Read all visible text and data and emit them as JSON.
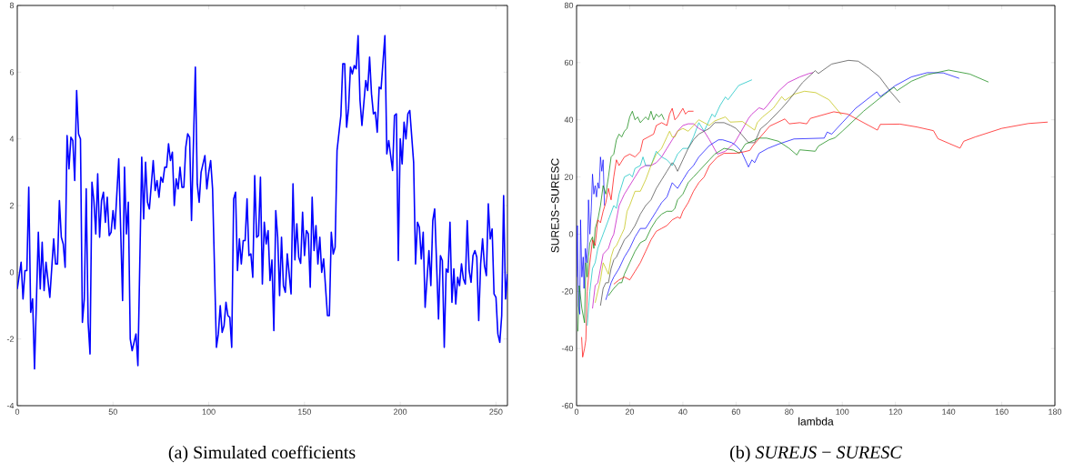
{
  "chart_data": [
    {
      "type": "line",
      "title": "(a) Simulated coefficients",
      "color": "#0000ff",
      "xlim": [
        0,
        256
      ],
      "ylim": [
        -4,
        8
      ],
      "xticks": [
        0,
        50,
        100,
        150,
        200,
        250
      ],
      "yticks": [
        -4,
        -2,
        0,
        2,
        4,
        6,
        8
      ],
      "x": [
        0,
        2,
        3,
        4,
        5,
        6,
        7,
        8,
        9,
        11,
        12,
        13,
        14,
        15,
        17,
        19,
        20,
        21,
        22,
        23,
        24,
        25,
        26,
        27,
        28,
        29,
        30,
        31,
        32,
        33,
        34,
        35,
        36,
        37,
        38,
        39,
        40,
        41,
        42,
        43,
        44,
        45,
        46,
        47,
        48,
        49,
        50,
        51,
        53,
        55,
        56,
        57,
        58,
        59,
        60,
        62,
        63,
        65,
        66,
        67,
        68,
        69,
        71,
        72,
        73,
        74,
        75,
        76,
        77,
        78,
        79,
        80,
        81,
        82,
        83,
        84,
        85,
        86,
        87,
        88,
        89,
        90,
        91,
        93,
        94,
        95,
        96,
        98,
        99,
        100,
        101,
        102,
        104,
        105,
        106,
        107,
        108,
        109,
        110,
        111,
        112,
        113,
        114,
        115,
        116,
        117,
        118,
        119,
        120,
        121,
        122,
        123,
        124,
        125,
        126,
        127,
        128,
        129,
        130,
        131,
        132,
        133,
        134,
        135,
        136,
        137,
        138,
        139,
        140,
        141,
        143,
        144,
        145,
        146,
        147,
        148,
        149,
        150,
        151,
        152,
        153,
        154,
        155,
        156,
        157,
        158,
        159,
        160,
        162,
        163,
        164,
        165,
        166,
        167,
        169,
        170,
        171,
        172,
        173,
        174,
        175,
        176,
        177,
        178,
        179,
        180,
        182,
        183,
        184,
        185,
        186,
        187,
        188,
        189,
        190,
        192,
        193,
        194,
        196,
        197,
        198,
        199,
        200,
        201,
        202,
        203,
        204,
        205,
        207,
        208,
        209,
        210,
        211,
        212,
        213,
        215,
        216,
        217,
        218,
        220,
        221,
        222,
        223,
        224,
        225,
        226,
        227,
        228,
        229,
        230,
        231,
        232,
        233,
        234,
        235,
        236,
        237,
        238,
        239,
        240,
        241,
        242,
        243,
        244,
        245,
        246,
        247,
        248,
        249,
        250,
        251,
        252,
        253,
        254,
        255,
        256
      ],
      "values": [
        -0.5,
        0.3,
        -0.8,
        0.05,
        0.05,
        2.55,
        -1.2,
        -0.8,
        -2.9,
        1.2,
        -0.5,
        0.9,
        -0.55,
        0.3,
        -0.75,
        1.0,
        0.25,
        0.25,
        2.15,
        1.05,
        0.85,
        0.15,
        4.1,
        3.1,
        4.05,
        3.95,
        2.75,
        5.45,
        4.15,
        4.0,
        -1.5,
        -0.8,
        2.5,
        -1.5,
        -2.45,
        2.7,
        2.15,
        1.15,
        2.95,
        1.05,
        2.15,
        2.4,
        1.5,
        2.25,
        1.1,
        1.2,
        1.85,
        1.3,
        3.4,
        -0.85,
        3.15,
        1.15,
        2.1,
        -2.0,
        -2.35,
        -1.85,
        -2.8,
        3.45,
        1.6,
        3.3,
        2.1,
        1.9,
        3.35,
        2.45,
        2.75,
        2.25,
        2.85,
        2.7,
        3.15,
        3.15,
        3.85,
        3.35,
        3.6,
        2.0,
        2.8,
        2.5,
        3.15,
        2.55,
        2.55,
        3.75,
        4.15,
        4.05,
        1.55,
        6.15,
        2.65,
        2.1,
        3.0,
        3.5,
        2.5,
        3.0,
        3.35,
        2.5,
        -2.25,
        -1.85,
        -1.0,
        -1.8,
        -1.6,
        -0.9,
        -1.3,
        -1.35,
        -2.25,
        2.2,
        2.4,
        0.05,
        1.0,
        0.25,
        0.95,
        0.95,
        2.2,
        0.5,
        0.55,
        -0.15,
        2.9,
        1.05,
        1.1,
        2.85,
        -0.35,
        1.5,
        0.85,
        1.25,
        -0.25,
        0.37,
        -1.75,
        1.85,
        1.05,
        -0.7,
        1.05,
        -0.4,
        -0.6,
        0.55,
        -0.65,
        2.65,
        0.37,
        1.45,
        0.45,
        0.27,
        1.8,
        0.5,
        1.25,
        1.15,
        -0.45,
        2.25,
        0.65,
        1.4,
        0.25,
        1.05,
        0.0,
        0.4,
        -1.3,
        -1.3,
        1.2,
        0.55,
        0.75,
        3.65,
        4.7,
        6.25,
        6.25,
        4.35,
        4.9,
        6.15,
        5.95,
        6.2,
        6.1,
        7.1,
        5.15,
        4.4,
        5.75,
        5.45,
        6.45,
        5.35,
        4.75,
        4.8,
        4.2,
        5.55,
        5.5,
        7.1,
        3.55,
        3.95,
        3.05,
        4.7,
        4.75,
        0.35,
        4.0,
        3.25,
        4.5,
        4.0,
        4.75,
        4.85,
        3.3,
        0.25,
        1.5,
        1.35,
        0.4,
        1.2,
        -1.05,
        0.65,
        -0.4,
        1.55,
        1.9,
        -1.4,
        0.5,
        0.35,
        -2.25,
        0.1,
        0.0,
        1.5,
        -0.9,
        0.1,
        -0.95,
        -0.15,
        -0.4,
        0.25,
        -0.2,
        -0.35,
        1.55,
        0.05,
        -0.3,
        0.5,
        0.65,
        0.45,
        -1.45,
        0.25,
        1.0,
        0.2,
        -0.1,
        2.05,
        1.0,
        1.3,
        -0.65,
        -0.75,
        -1.85,
        -2.1,
        -1.3,
        2.3,
        -0.8,
        -0.05
      ]
    },
    {
      "type": "line",
      "title": "(b) *SUREJS* − *SURESC*",
      "xlabel": "lambda",
      "ylabel": "SUREJS−SURESC",
      "xlim": [
        0,
        180
      ],
      "ylim": [
        -60,
        80
      ],
      "xticks": [
        0,
        20,
        40,
        60,
        80,
        100,
        120,
        140,
        160,
        180
      ],
      "yticks": [
        -60,
        -40,
        -20,
        0,
        20,
        40,
        60,
        80
      ],
      "series": [
        {
          "color": "#0000ff",
          "x": [
            0,
            0.3,
            0.7,
            1.2,
            1.5,
            2,
            2.5,
            2.8,
            3.3,
            3.8,
            4.2,
            4.5,
            5,
            5.5,
            6,
            6.5,
            7,
            7.5,
            8,
            8.5,
            9,
            9.5,
            10,
            10.5
          ],
          "values": [
            -15,
            3,
            -25,
            -28,
            5,
            -15,
            -8,
            -19,
            -5,
            -10,
            -3,
            12,
            0,
            8,
            21,
            14,
            17,
            13,
            18,
            16,
            27,
            22,
            26,
            10
          ]
        },
        {
          "color": "#008000",
          "x": [
            0.5,
            1,
            2,
            3,
            3.5,
            4,
            4.5,
            5,
            6,
            6.5,
            7,
            8,
            9,
            10,
            11,
            12,
            13,
            14,
            15,
            16,
            17,
            18,
            19,
            20,
            21,
            22,
            23,
            24,
            25,
            26,
            27,
            28,
            29,
            30,
            31,
            32,
            33
          ],
          "values": [
            -34,
            -18,
            -26,
            -31,
            -10,
            -15,
            -8,
            -3,
            -1,
            -5,
            2,
            5,
            10,
            17,
            14,
            20,
            27,
            28,
            33,
            35,
            34,
            36,
            37,
            41,
            43,
            40,
            41,
            39,
            40,
            41,
            40,
            43,
            40,
            42,
            41,
            42,
            40
          ]
        },
        {
          "color": "#ff0000",
          "x": [
            1.9,
            2.3,
            3,
            3.5,
            4,
            5,
            6,
            7,
            8,
            9,
            10,
            11,
            12,
            13,
            14,
            15,
            16,
            18,
            20,
            22,
            24,
            25,
            27,
            29,
            30,
            32,
            34,
            35,
            36,
            37,
            38,
            40,
            41,
            42,
            44
          ],
          "values": [
            -36,
            -43,
            -40,
            -37,
            -20,
            -10,
            -2,
            -4,
            5,
            4,
            8,
            11,
            16,
            12,
            20,
            26,
            24,
            27,
            28,
            27,
            29,
            33,
            34,
            35,
            38,
            39,
            38,
            42,
            44,
            40,
            41,
            44,
            42,
            43,
            43
          ]
        },
        {
          "color": "#00bfbf",
          "x": [
            4,
            5,
            6,
            7,
            8,
            10,
            12,
            14,
            15,
            16,
            18,
            20,
            21,
            22,
            24,
            25,
            26,
            28,
            30,
            32,
            34,
            36,
            38,
            40,
            42,
            44,
            46,
            48,
            50,
            51,
            52,
            54,
            56,
            57,
            61,
            66
          ],
          "values": [
            -32,
            -20,
            -12,
            -10,
            -5,
            0,
            5,
            10,
            9,
            14,
            20,
            21,
            20,
            23,
            24,
            27,
            24,
            24,
            29,
            27,
            26,
            24,
            28,
            30,
            30,
            34,
            39,
            36,
            40,
            42,
            41,
            45,
            48,
            47,
            52,
            54
          ]
        },
        {
          "color": "#bf00bf",
          "x": [
            6,
            7,
            8,
            9,
            10,
            11,
            12,
            13,
            14,
            15,
            16,
            17,
            18,
            20,
            22,
            24,
            26,
            28,
            30,
            32,
            34,
            36,
            38,
            40,
            42,
            44,
            46,
            48,
            50,
            53,
            56,
            59.5,
            62,
            64.7,
            66,
            68.7,
            70.4,
            71.5,
            76,
            79.5,
            84,
            87.5,
            89
          ],
          "values": [
            -26,
            -18,
            -17,
            -12,
            -7,
            -6,
            -5,
            -2,
            0,
            5,
            10,
            12,
            14,
            17,
            20,
            23,
            24,
            24,
            25,
            27,
            30,
            33,
            36,
            38,
            38.6,
            38.6,
            37,
            36,
            33,
            28,
            29,
            32,
            36,
            40.5,
            42,
            44.2,
            43.6,
            44.7,
            50,
            53,
            55,
            56.2,
            56.5
          ]
        },
        {
          "color": "#bfbf00",
          "x": [
            7,
            8,
            9,
            10,
            11,
            12,
            13,
            14,
            15,
            16,
            17,
            18,
            19,
            20,
            22,
            24,
            26,
            28,
            30,
            32,
            34,
            35,
            36,
            37,
            38,
            40,
            42,
            44,
            46,
            48,
            50,
            52,
            56,
            57.8,
            62.4,
            67,
            68,
            70,
            74,
            77.2,
            78.4,
            82,
            85.8,
            90,
            95,
            99.7
          ],
          "values": [
            -24,
            -20,
            -16,
            -10,
            -12,
            -14,
            -8,
            -5,
            -4,
            -2,
            0,
            2,
            8,
            10,
            15,
            15,
            19,
            24,
            28,
            30,
            34,
            36,
            34,
            34,
            36,
            37,
            36,
            38,
            40,
            39,
            38,
            39.6,
            41,
            39.2,
            39.4,
            36.4,
            39,
            41,
            44,
            48.1,
            46.8,
            49,
            50,
            49.5,
            47,
            41.7
          ]
        },
        {
          "color": "#404040",
          "x": [
            9,
            10,
            11,
            12,
            13,
            14,
            15,
            16,
            18,
            20,
            22,
            24,
            26,
            28,
            30,
            32,
            34,
            36,
            37,
            38,
            40,
            42,
            44,
            46,
            48,
            50,
            52,
            55.5,
            58,
            60,
            62,
            64.7,
            67,
            69.2,
            72,
            77.2,
            80,
            85,
            89.8,
            91,
            96,
            102.3,
            106,
            110,
            114,
            118,
            121.7
          ],
          "values": [
            -25,
            -19,
            -17,
            -17,
            -12,
            -9,
            -8,
            -6,
            -2,
            0,
            3,
            7,
            10,
            12,
            16,
            19,
            22,
            25,
            24,
            22,
            26,
            30,
            33,
            35,
            36,
            37,
            39,
            39,
            38,
            37,
            35,
            32,
            32,
            36.8,
            39,
            44,
            47,
            53,
            57.2,
            56.2,
            59.5,
            60.8,
            60.5,
            58,
            55,
            50,
            46
          ]
        },
        {
          "color": "#0000ff",
          "x": [
            11,
            12,
            13,
            14,
            16,
            18,
            20,
            22,
            24,
            26,
            28,
            30,
            32,
            34,
            36,
            37,
            38,
            40,
            42,
            44,
            46,
            48,
            50,
            53.4,
            55,
            58.4,
            60,
            62,
            64.7,
            66,
            67,
            68.7,
            72,
            76,
            81.8,
            93.2,
            94.3,
            96,
            100,
            105,
            113,
            114.3,
            120,
            126,
            132,
            138,
            144
          ],
          "values": [
            -23,
            -20,
            -17,
            -15,
            -12,
            -8,
            -5,
            -1,
            2,
            2,
            5,
            8,
            11,
            13,
            18,
            17,
            16,
            19,
            22,
            24,
            27,
            29,
            31,
            33,
            33,
            32,
            31,
            29,
            23.5,
            26,
            25,
            28.3,
            30,
            31.5,
            33.3,
            33.6,
            35.7,
            35,
            39,
            44,
            49.8,
            48.1,
            52,
            55,
            56.5,
            56.4,
            54.5
          ]
        },
        {
          "color": "#008000",
          "x": [
            12,
            14,
            16,
            17,
            18,
            20,
            22,
            24,
            26,
            28,
            30,
            32,
            34,
            36,
            37,
            38,
            40,
            42,
            44,
            46,
            48,
            50,
            52,
            55.5,
            59,
            61.3,
            63.5,
            68.7,
            71.5,
            76,
            80,
            82.9,
            84,
            89.8,
            91,
            95,
            97.2,
            100,
            108,
            114,
            119.4,
            120.6,
            126,
            132,
            140,
            148,
            155
          ],
          "values": [
            -21.5,
            -19,
            -17,
            -17,
            -14,
            -10,
            -6,
            -3,
            -2,
            2,
            5,
            7,
            8,
            8,
            9,
            12,
            14,
            18,
            20,
            22,
            24,
            26,
            28,
            30,
            29.4,
            28.3,
            31.5,
            33.6,
            33.6,
            32.5,
            30,
            27.7,
            29.5,
            29,
            30.8,
            33,
            33.7,
            36,
            43,
            47.5,
            51.4,
            50.2,
            53.5,
            55.8,
            57.4,
            56,
            53.2
          ]
        },
        {
          "color": "#ff0000",
          "x": [
            14,
            16,
            18,
            20,
            22,
            24,
            26,
            28,
            30,
            32,
            34,
            36,
            38,
            39,
            40,
            42,
            44,
            46,
            48,
            50,
            53,
            55.5,
            60,
            63,
            65.2,
            66.4,
            72.7,
            78.4,
            80,
            84,
            86.6,
            88,
            96.8,
            102,
            106,
            110,
            113.2,
            114.3,
            121.7,
            128,
            134.3,
            136,
            140,
            144.3,
            145.7,
            150,
            160,
            170,
            177.3
          ],
          "values": [
            -17.5,
            -16,
            -15,
            -16,
            -13,
            -10,
            -6,
            -2,
            1,
            2,
            3,
            5,
            6,
            5.5,
            8,
            11,
            15,
            18,
            20,
            24,
            27,
            28.3,
            28.3,
            28.8,
            29.3,
            31,
            37.8,
            40.3,
            38.6,
            39,
            38.6,
            40.5,
            42.8,
            42,
            40,
            38,
            36.4,
            38.4,
            38.5,
            37.5,
            36.2,
            33.4,
            31.8,
            30.1,
            32.5,
            34,
            37,
            38.7,
            39.2
          ]
        }
      ]
    }
  ]
}
